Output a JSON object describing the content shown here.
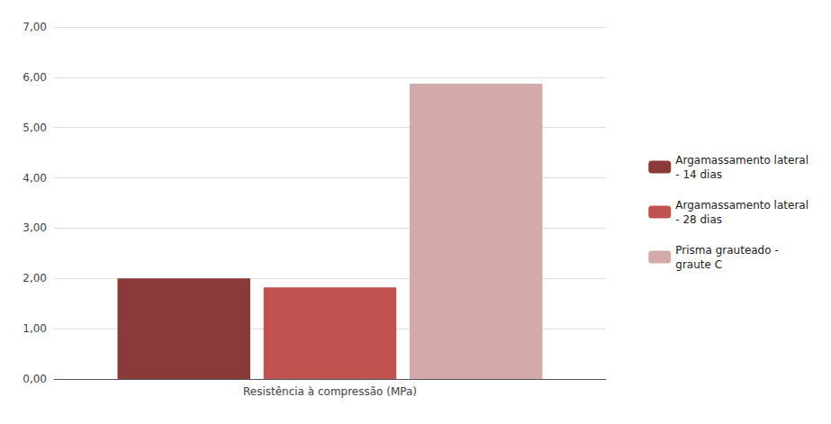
{
  "chart_data": {
    "type": "bar",
    "categories": [
      "Resistência à compressão (MPa)"
    ],
    "series": [
      {
        "name": "Argamassamento lateral\n- 14 dias",
        "color": "#8B3A3A",
        "values": [
          2.0
        ]
      },
      {
        "name": "Argamassamento lateral\n- 28 dias",
        "color": "#C0524F",
        "values": [
          1.82
        ]
      },
      {
        "name": "Prisma grauteado -\ngraute C",
        "color": "#D4A9A9",
        "values": [
          5.87
        ]
      }
    ],
    "ylim": [
      0,
      7.0
    ],
    "yticks": [
      {
        "value": 0.0,
        "label": "0,00"
      },
      {
        "value": 1.0,
        "label": "1,00"
      },
      {
        "value": 2.0,
        "label": "2,00"
      },
      {
        "value": 3.0,
        "label": "3,00"
      },
      {
        "value": 4.0,
        "label": "4,00"
      },
      {
        "value": 5.0,
        "label": "5,00"
      },
      {
        "value": 6.0,
        "label": "6,00"
      },
      {
        "value": 7.0,
        "label": "7,00"
      }
    ],
    "grid": true,
    "legend": "right"
  }
}
